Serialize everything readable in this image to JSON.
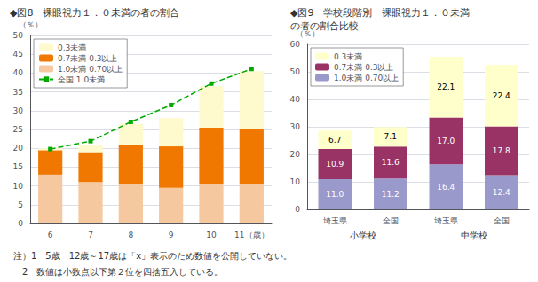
{
  "chart_data": [
    {
      "type": "bar",
      "title": "◆図8　裸眼視力１．０未満の者の割合",
      "ylabel": "（％）",
      "categories": [
        "6",
        "7",
        "8",
        "9",
        "10",
        "11（歳）"
      ],
      "stacked": true,
      "series": [
        {
          "name": "1.0未満 0.70以上",
          "color": "#F5C8A0",
          "values": [
            13.0,
            11.0,
            10.5,
            9.5,
            10.5,
            10.5
          ]
        },
        {
          "name": "0.7未満 0.3以上",
          "color": "#F07800",
          "values": [
            6.5,
            8.0,
            10.5,
            11.0,
            15.0,
            14.5
          ]
        },
        {
          "name": "0.3未満",
          "color": "#FFFACD",
          "values": [
            0.5,
            2.0,
            5.5,
            7.5,
            11.0,
            15.5
          ]
        },
        {
          "name": "全国 1.0未満",
          "type": "line",
          "color": "#00AA00",
          "marker": "square",
          "line_style": "dashed",
          "values": [
            19.8,
            21.9,
            27.0,
            31.5,
            37.2,
            41.1
          ]
        }
      ],
      "ylim": [
        0,
        50
      ],
      "yticks": [
        0,
        5,
        10,
        15,
        20,
        25,
        30,
        35,
        40,
        45,
        50
      ],
      "grid": true,
      "legend": "upper left",
      "annotations": [
        "注）1　5歳　12歳～17歳は「x」表示のため数値を公開していない。",
        "　2　数値は小数点以下第２位を四捨五入している。"
      ]
    },
    {
      "type": "bar",
      "title": "◆図9　学校段階別　裸眼視力１．０未満",
      "subtitle": "の者の割合比較",
      "ylabel": "（％）",
      "categories": [
        "埼玉県",
        "全国",
        "埼玉県",
        "全国"
      ],
      "group_labels": [
        "小学校",
        "中学校"
      ],
      "stacked": true,
      "data_labels": true,
      "series": [
        {
          "name": "1.0未満 0.70以上",
          "color": "#9999CC",
          "values": [
            11.0,
            11.2,
            16.4,
            12.4
          ],
          "value_labels": [
            "11.0",
            "11.2",
            "16.4",
            "12.4"
          ]
        },
        {
          "name": "0.7未満 0.3以上",
          "color": "#993366",
          "values": [
            10.9,
            11.6,
            17.0,
            17.8
          ],
          "value_labels": [
            "10.9",
            "11.6",
            "17.0",
            "17.8"
          ]
        },
        {
          "name": "0.3未満",
          "color": "#FFFFCC",
          "values": [
            6.7,
            7.1,
            22.1,
            22.4
          ],
          "value_labels": [
            "6.7",
            "7.1",
            "22.1",
            "22.4"
          ]
        }
      ],
      "ylim": [
        0,
        60
      ],
      "yticks": [
        0,
        10,
        20,
        30,
        40,
        50,
        60
      ],
      "grid": true,
      "legend": "upper left"
    }
  ]
}
